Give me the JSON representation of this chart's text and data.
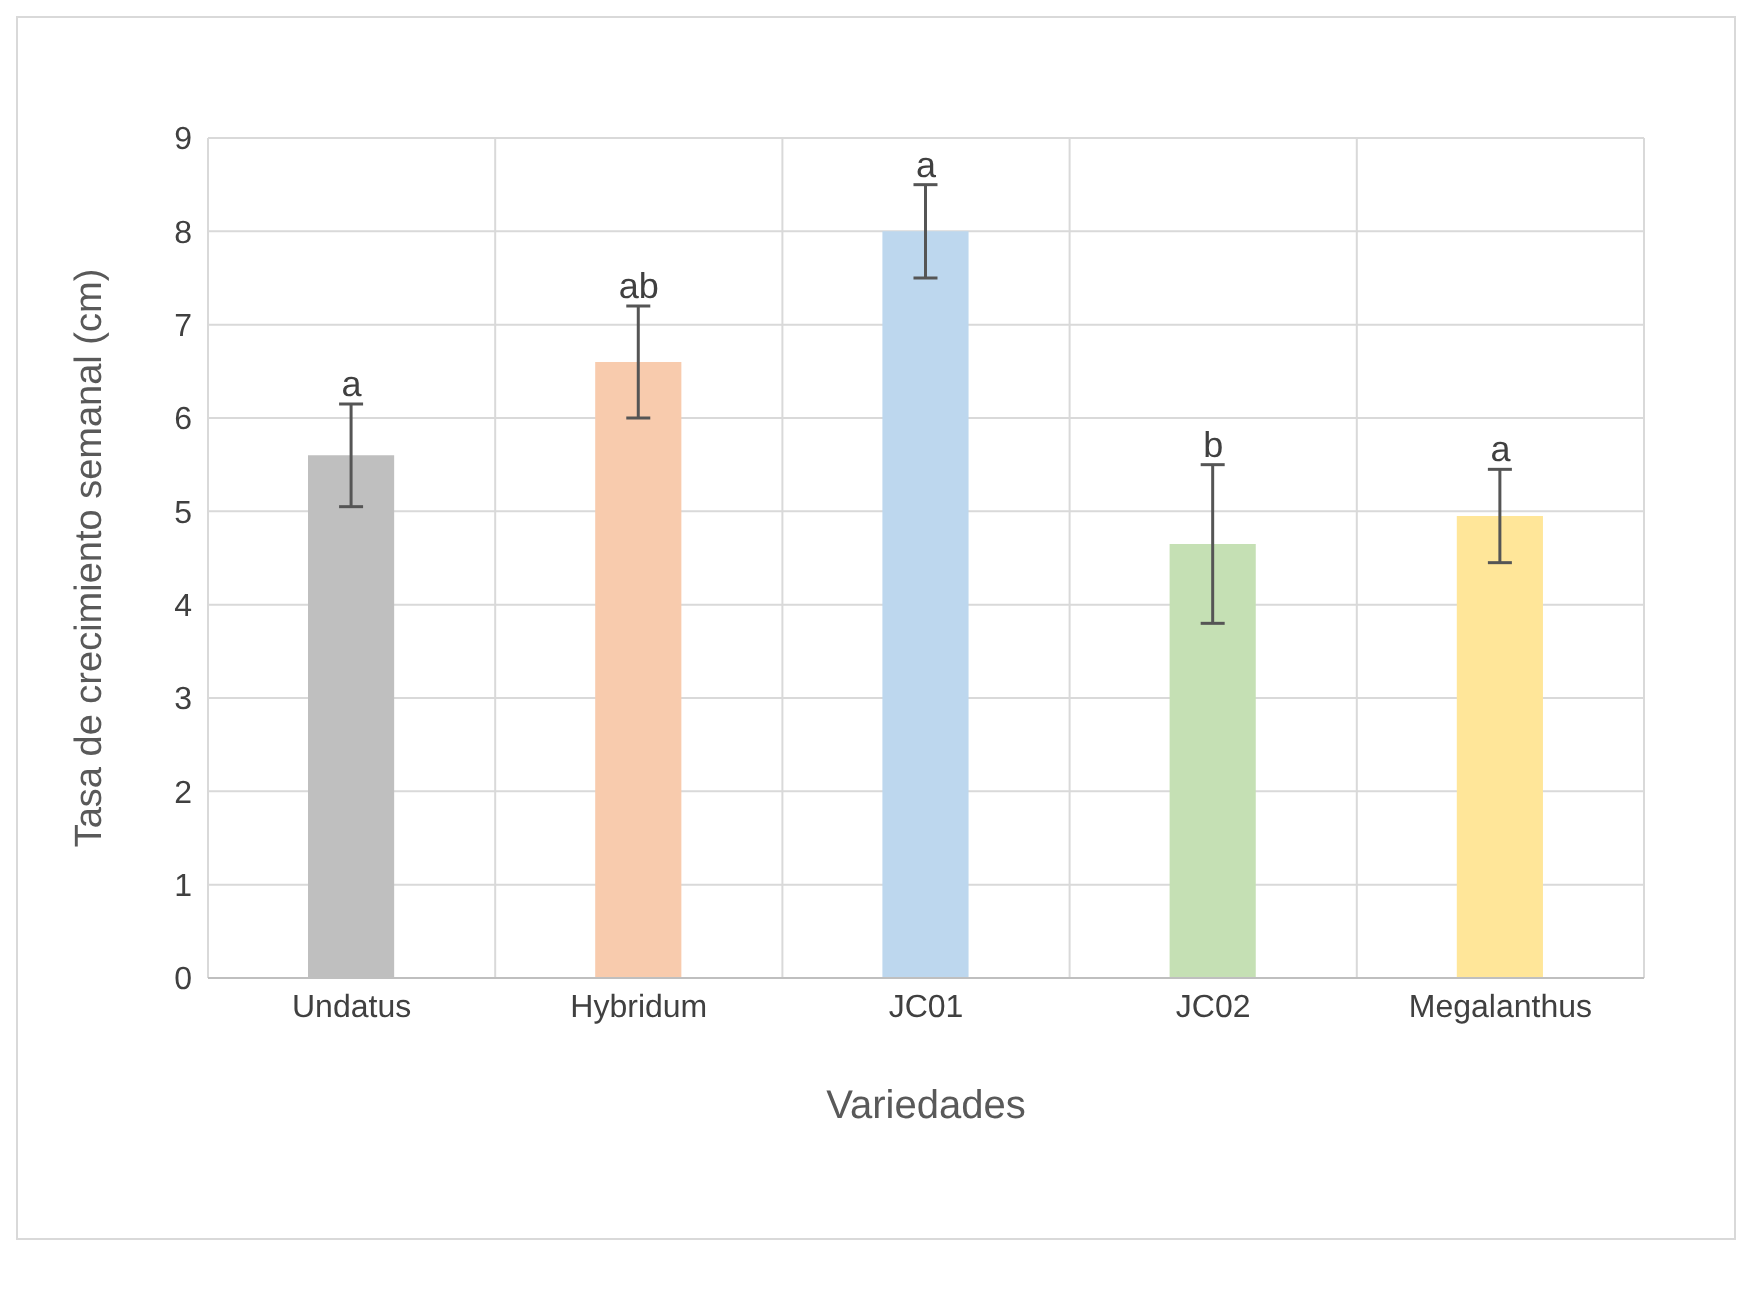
{
  "chart_data": {
    "type": "bar",
    "xlabel": "Variedades",
    "ylabel": "Tasa de crecimiento semanal (cm)",
    "categories": [
      "Undatus",
      "Hybridum",
      "JC01",
      "JC02",
      "Megalanthus"
    ],
    "values": [
      5.6,
      6.6,
      8.0,
      4.65,
      4.95
    ],
    "errors": [
      0.55,
      0.6,
      0.5,
      0.85,
      0.5
    ],
    "colors": [
      "#bfbfbf",
      "#f8cbad",
      "#bdd7ee",
      "#c5e0b4",
      "#ffe699"
    ],
    "ylim": [
      0,
      9
    ],
    "yticks": [
      0,
      1,
      2,
      3,
      4,
      5,
      6,
      7,
      8,
      9
    ],
    "grid": true,
    "annotations": [
      {
        "text": "a",
        "x": "Undatus",
        "y": 6.15
      },
      {
        "text": "ab",
        "x": "Hybridum",
        "y": 7.2
      },
      {
        "text": "a",
        "x": "JC01",
        "y": 8.5
      },
      {
        "text": "b",
        "x": "JC02",
        "y": 5.5
      },
      {
        "text": "a",
        "x": "Megalanthus",
        "y": 5.45
      }
    ]
  }
}
